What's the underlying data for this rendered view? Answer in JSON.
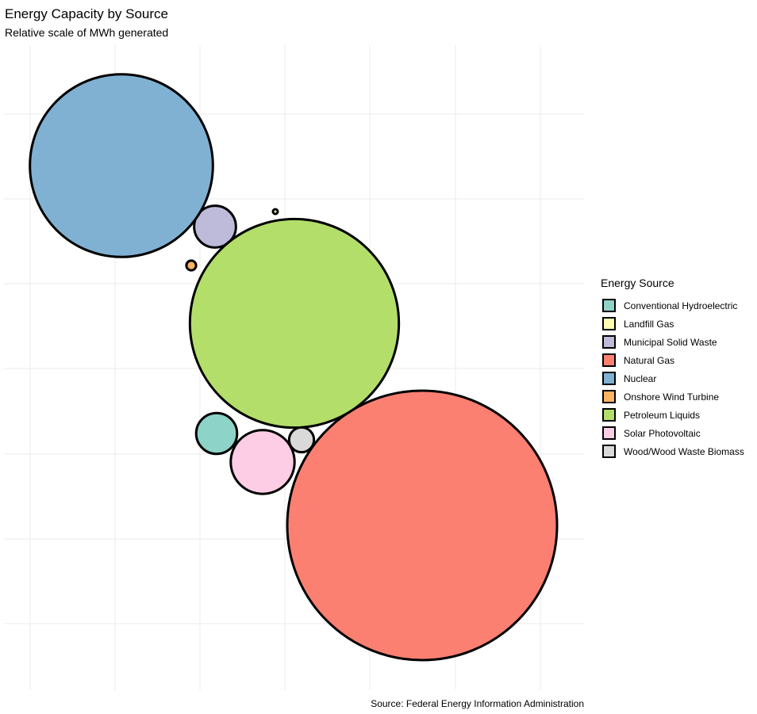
{
  "chart_data": {
    "type": "bubble",
    "title": "Energy Capacity by Source",
    "subtitle": "Relative scale of MWh generated",
    "caption": "Source: Federal Energy Information Administration",
    "legend_title": "Energy Source",
    "legend_position": "right",
    "grid": true,
    "axes_visible": false,
    "series": [
      {
        "name": "Conventional Hydroelectric",
        "color": "#8DD3C7",
        "relative_size": 0.023
      },
      {
        "name": "Landfill Gas",
        "color": "#FFFFB3",
        "relative_size": 0.0001
      },
      {
        "name": "Municipal Solid Waste",
        "color": "#BEBADA",
        "relative_size": 0.024
      },
      {
        "name": "Natural Gas",
        "color": "#FB8072",
        "relative_size": 1.0
      },
      {
        "name": "Nuclear",
        "color": "#80B1D3",
        "relative_size": 0.46
      },
      {
        "name": "Onshore Wind Turbine",
        "color": "#FDB462",
        "relative_size": 0.0013
      },
      {
        "name": "Petroleum Liquids",
        "color": "#B3DE69",
        "relative_size": 0.6
      },
      {
        "name": "Solar Photovoltaic",
        "color": "#FCCDE5",
        "relative_size": 0.056
      },
      {
        "name": "Wood/Wood Waste Biomass",
        "color": "#D9D9D9",
        "relative_size": 0.0085
      }
    ]
  }
}
